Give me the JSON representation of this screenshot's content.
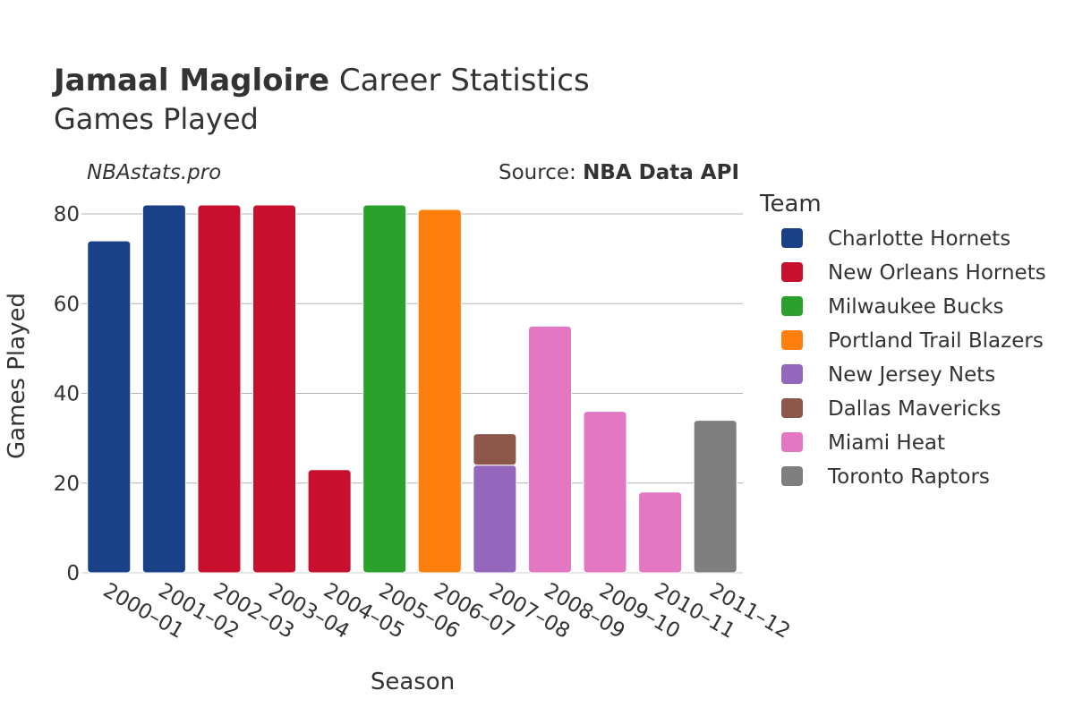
{
  "chart_data": {
    "type": "bar",
    "stacked": true,
    "title_bold": "Jamaal Magloire",
    "title_rest": "Career Statistics",
    "subtitle": "Games Played",
    "watermark": "NBAstats.pro",
    "source_label": "Source:",
    "source_name": "NBA Data API",
    "xlabel": "Season",
    "ylabel": "Games Played",
    "ylim": [
      0,
      85
    ],
    "yticks": [
      0,
      20,
      40,
      60,
      80
    ],
    "legend_title": "Team",
    "legend_position": "right",
    "categories": [
      "2000–01",
      "2001–02",
      "2002–03",
      "2003–04",
      "2004–05",
      "2005–06",
      "2006–07",
      "2007–08",
      "2008–09",
      "2009–10",
      "2010–11",
      "2011–12"
    ],
    "series": [
      {
        "name": "Charlotte Hornets",
        "color": "#1a4087",
        "values": [
          74,
          82,
          0,
          0,
          0,
          0,
          0,
          0,
          0,
          0,
          0,
          0
        ]
      },
      {
        "name": "New Orleans Hornets",
        "color": "#c8102e",
        "values": [
          0,
          0,
          82,
          82,
          23,
          0,
          0,
          0,
          0,
          0,
          0,
          0
        ]
      },
      {
        "name": "Milwaukee Bucks",
        "color": "#2ca02c",
        "values": [
          0,
          0,
          0,
          0,
          0,
          82,
          0,
          0,
          0,
          0,
          0,
          0
        ]
      },
      {
        "name": "Portland Trail Blazers",
        "color": "#ff7f0e",
        "values": [
          0,
          0,
          0,
          0,
          0,
          0,
          81,
          0,
          0,
          0,
          0,
          0
        ]
      },
      {
        "name": "New Jersey Nets",
        "color": "#9467bd",
        "values": [
          0,
          0,
          0,
          0,
          0,
          0,
          0,
          24,
          0,
          0,
          0,
          0
        ]
      },
      {
        "name": "Dallas Mavericks",
        "color": "#8c564b",
        "values": [
          0,
          0,
          0,
          0,
          0,
          0,
          0,
          7,
          0,
          0,
          0,
          0
        ]
      },
      {
        "name": "Miami Heat",
        "color": "#e377c2",
        "values": [
          0,
          0,
          0,
          0,
          0,
          0,
          0,
          0,
          55,
          36,
          18,
          0
        ]
      },
      {
        "name": "Toronto Raptors",
        "color": "#7f7f7f",
        "values": [
          0,
          0,
          0,
          0,
          0,
          0,
          0,
          0,
          0,
          0,
          0,
          34
        ]
      }
    ]
  }
}
